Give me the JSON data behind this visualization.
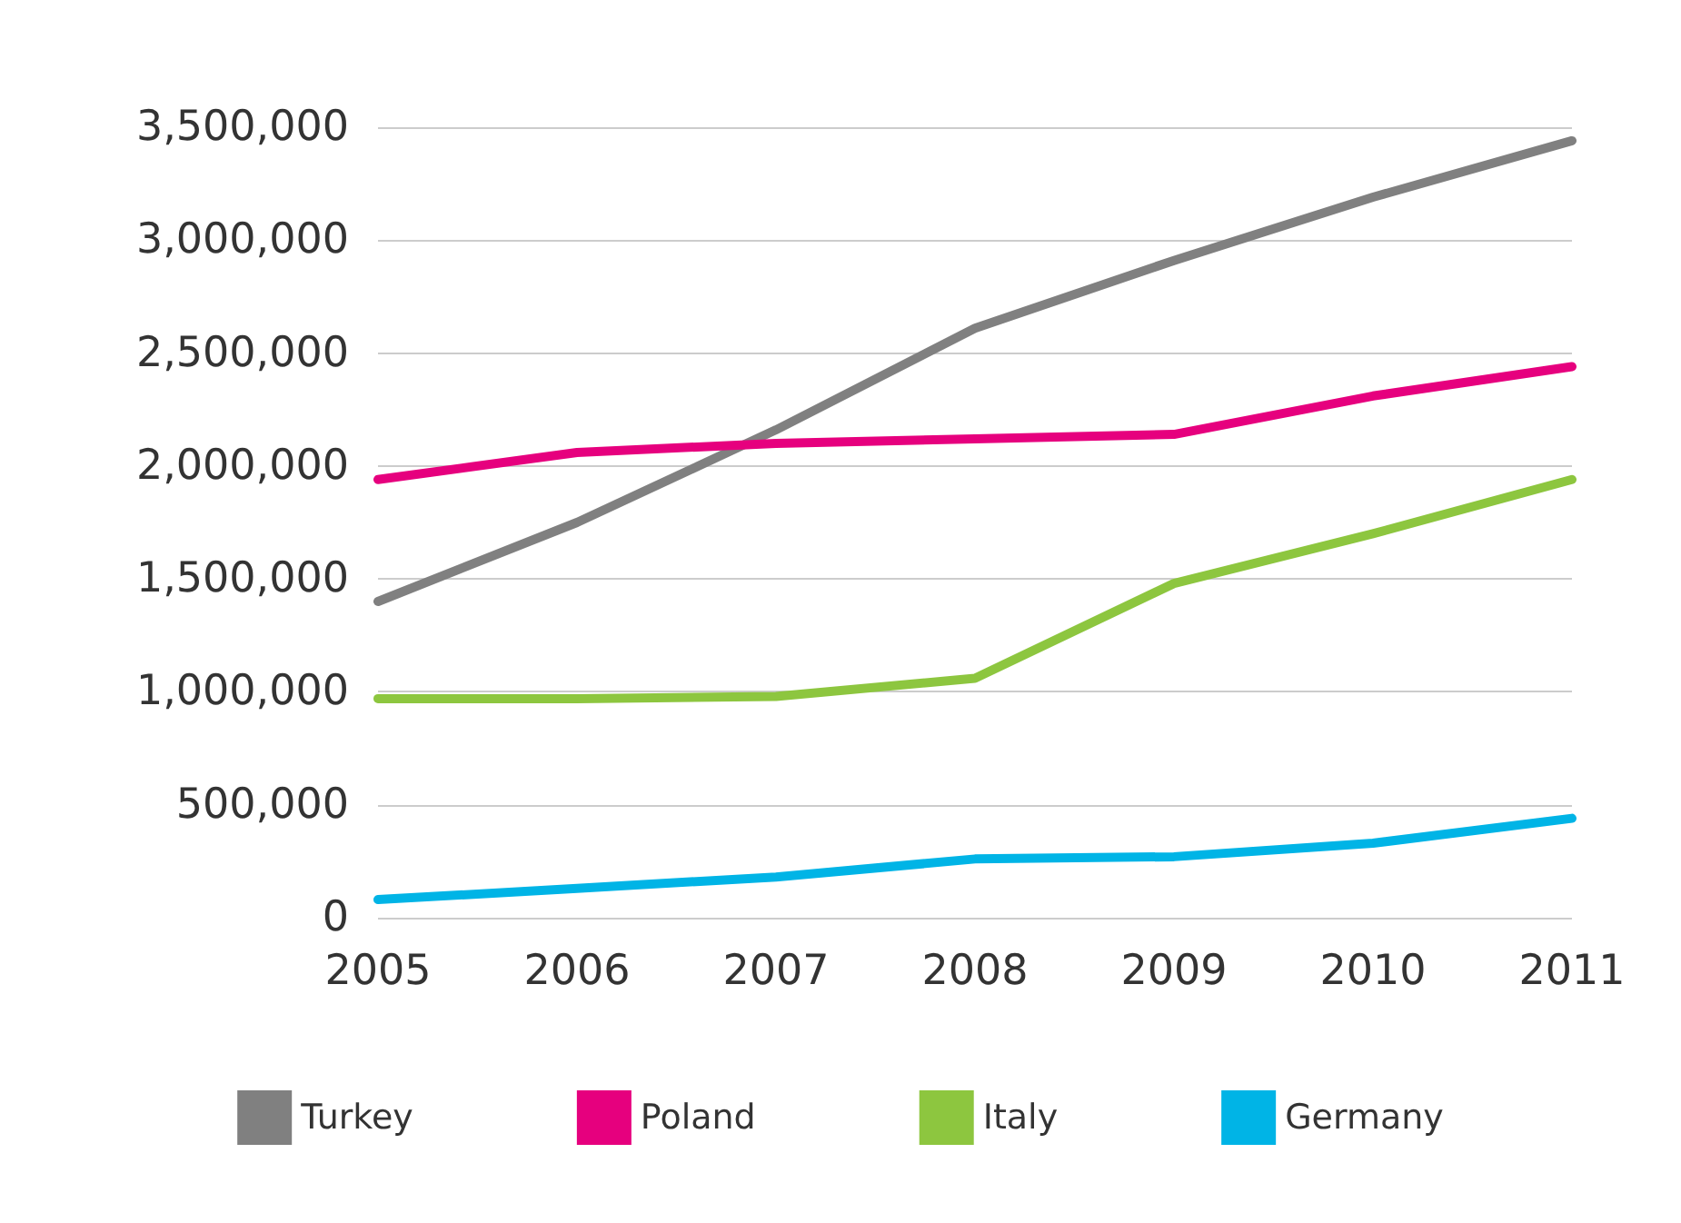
{
  "chart_data": {
    "type": "line",
    "categories": [
      "2005",
      "2006",
      "2007",
      "2008",
      "2009",
      "2010",
      "2011"
    ],
    "series": [
      {
        "name": "Turkey",
        "color": "#808080",
        "values": [
          1400000,
          1750000,
          2160000,
          2610000,
          2910000,
          3190000,
          3440000
        ]
      },
      {
        "name": "Poland",
        "color": "#e6007e",
        "values": [
          1940000,
          2060000,
          2100000,
          2120000,
          2140000,
          2310000,
          2440000
        ]
      },
      {
        "name": "Italy",
        "color": "#8dc63f",
        "values": [
          970000,
          970000,
          980000,
          1060000,
          1480000,
          1700000,
          1940000
        ]
      },
      {
        "name": "Germany",
        "color": "#00b4e6",
        "values": [
          80000,
          130000,
          180000,
          260000,
          270000,
          330000,
          440000
        ]
      }
    ],
    "ylim": [
      0,
      3500000
    ],
    "yticks": [
      0,
      {
        "value": 500000,
        "label": "500,000"
      },
      {
        "value": 1000000,
        "label": "1,000,000"
      },
      {
        "value": 1500000,
        "label": "1,500,000"
      },
      {
        "value": 2000000,
        "label": "2,000,000"
      },
      {
        "value": 2500000,
        "label": "2,500,000"
      },
      {
        "value": 3000000,
        "label": "3,000,000"
      },
      {
        "value": 3500000,
        "label": "3,500,000"
      }
    ],
    "grid": "y",
    "legend": "bottom",
    "marker": "none",
    "line_style": "solid"
  }
}
